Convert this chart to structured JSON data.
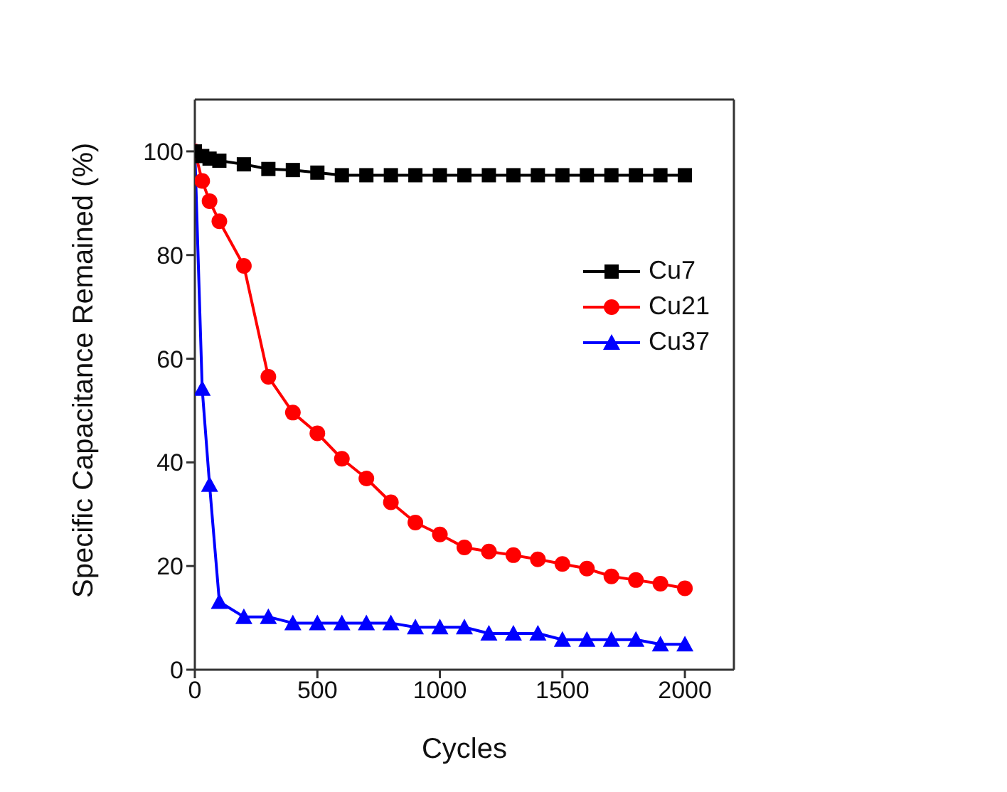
{
  "chart_data": {
    "type": "line",
    "xlabel": "Cycles",
    "ylabel": "Specific Capacitance Remained (%)",
    "x": [
      0,
      30,
      60,
      100,
      200,
      300,
      400,
      500,
      600,
      700,
      800,
      900,
      1000,
      1100,
      1200,
      1300,
      1400,
      1500,
      1600,
      1700,
      1800,
      1900,
      2000
    ],
    "xlim": [
      0,
      2200
    ],
    "xticks": [
      0,
      500,
      1000,
      1500,
      2000
    ],
    "ylim": [
      0,
      110
    ],
    "yticks": [
      0,
      20,
      40,
      60,
      80,
      100
    ],
    "grid": false,
    "legend": "right",
    "line_style": "solid",
    "series": [
      {
        "name": "Cu7",
        "color": "#000000",
        "marker": "square",
        "values": [
          100,
          99.1,
          98.6,
          98.2,
          97.5,
          96.6,
          96.4,
          95.9,
          95.4,
          95.4,
          95.4,
          95.4,
          95.4,
          95.4,
          95.4,
          95.4,
          95.4,
          95.4,
          95.4,
          95.4,
          95.4,
          95.4,
          95.4
        ]
      },
      {
        "name": "Cu21",
        "color": "#ff0000",
        "marker": "circle",
        "values": [
          100,
          94.3,
          90.4,
          86.5,
          77.9,
          56.5,
          49.6,
          45.6,
          40.7,
          36.9,
          32.3,
          28.4,
          26.1,
          23.6,
          22.8,
          22.1,
          21.3,
          20.4,
          19.5,
          18.0,
          17.3,
          16.6,
          15.7
        ]
      },
      {
        "name": "Cu37",
        "color": "#0000ff",
        "marker": "triangle",
        "values": [
          100,
          54.2,
          35.7,
          13.1,
          10.2,
          10.2,
          9.0,
          9.0,
          9.0,
          9.0,
          9.0,
          8.2,
          8.2,
          8.2,
          7.0,
          7.0,
          7.0,
          5.8,
          5.8,
          5.8,
          5.8,
          4.9,
          4.9
        ]
      }
    ]
  }
}
